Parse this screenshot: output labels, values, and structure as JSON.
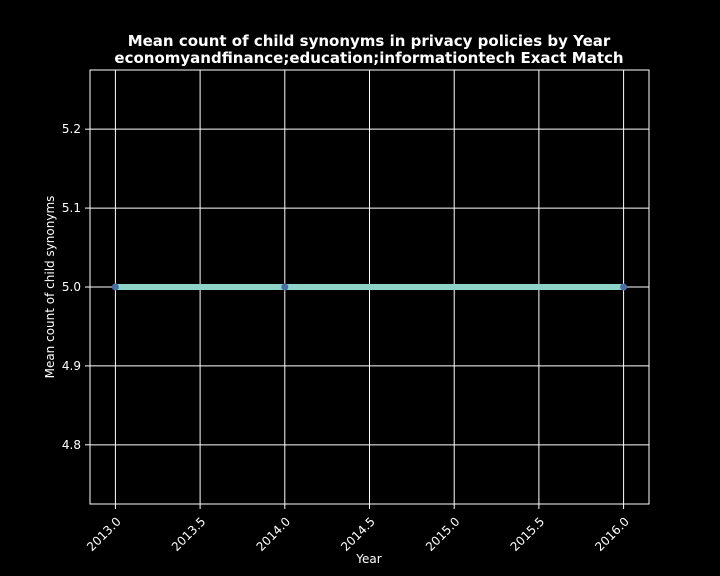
{
  "chart_data": {
    "type": "line",
    "title": "Mean count of child synonyms in privacy policies by Year",
    "subtitle": "economyandfinance;education;informationtech Exact Match",
    "xlabel": "Year",
    "ylabel": "Mean count of child synonyms",
    "x": [
      2013,
      2014,
      2016
    ],
    "series": [
      {
        "values": [
          5.0,
          5.0,
          5.0
        ]
      }
    ],
    "xlim": [
      2012.85,
      2016.15
    ],
    "ylim": [
      4.725,
      5.275
    ],
    "xticks": [
      2013.0,
      2013.5,
      2014.0,
      2014.5,
      2015.0,
      2015.5,
      2016.0
    ],
    "xtick_labels": [
      "2013.0",
      "2013.5",
      "2014.0",
      "2014.5",
      "2015.0",
      "2015.5",
      "2016.0"
    ],
    "yticks": [
      4.8,
      4.9,
      5.0,
      5.1,
      5.2
    ],
    "ytick_labels": [
      "4.8",
      "4.9",
      "5.0",
      "5.1",
      "5.2"
    ],
    "grid": true,
    "colors": {
      "background": "#000000",
      "line": "#8dd3c7",
      "marker": "#4a6fa5",
      "grid": "#ffffff",
      "text": "#ffffff"
    }
  }
}
